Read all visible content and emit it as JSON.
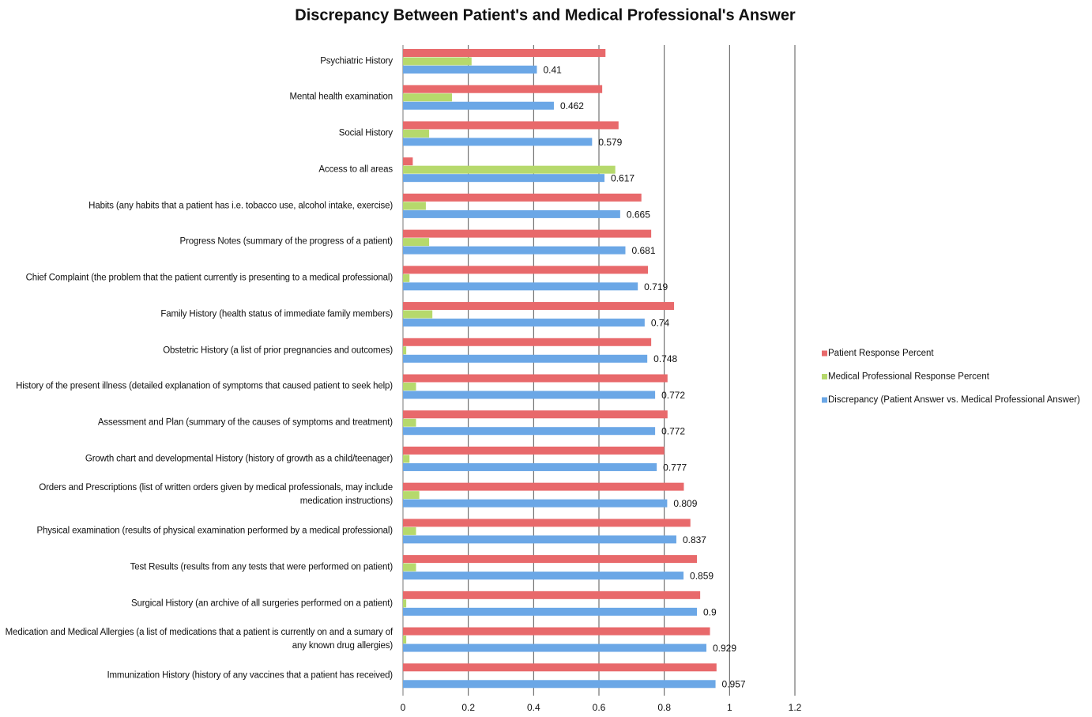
{
  "chart_data": {
    "type": "bar",
    "orientation": "horizontal",
    "title": "Discrepancy Between Patient's and Medical Professional's Answer",
    "categories": [
      "Psychiatric History",
      "Mental health examination",
      "Social History",
      "Access to all areas",
      "Habits (any habits that a patient has i.e. tobacco use, alcohol intake, exercise)",
      "Progress Notes (summary of the progress of a patient)",
      "Chief Complaint (the problem that the patient currently is presenting to a medical professional)",
      "Family History (health status of immediate family members)",
      "Obstetric History (a list of prior pregnancies and outcomes)",
      "History of the present illness (detailed explanation of symptoms that caused patient to seek help)",
      "Assessment and Plan (summary of the causes of symptoms and treatment)",
      "Growth chart and developmental History (history of growth as a child/teenager)",
      "Orders and Prescriptions (list of written orders given by medical professionals, may include medication instructions)",
      "Physical examination (results of physical examination performed by a medical professional)",
      "Test Results (results from any tests that were performed on patient)",
      "Surgical History (an archive of all surgeries performed on a patient)",
      "Medication and Medical Allergies (a list of medications that a patient is currently on and a sumary of any known drug allergies)",
      "Immunization History (history of any vaccines that a patient has received)"
    ],
    "series": [
      {
        "name": "Patient Response Percent",
        "color": "#e8696b",
        "values": [
          0.62,
          0.61,
          0.66,
          0.03,
          0.73,
          0.76,
          0.75,
          0.83,
          0.76,
          0.81,
          0.81,
          0.8,
          0.86,
          0.88,
          0.9,
          0.91,
          0.94,
          0.96
        ]
      },
      {
        "name": "Medical Professional Response Percent",
        "color": "#b6d96c",
        "values": [
          0.21,
          0.15,
          0.08,
          0.65,
          0.07,
          0.08,
          0.02,
          0.09,
          0.01,
          0.04,
          0.04,
          0.02,
          0.05,
          0.04,
          0.04,
          0.01,
          0.01,
          0
        ]
      },
      {
        "name": "Discrepancy (Patient Answer vs. Medical Professional Answer)",
        "color": "#6ba7e6",
        "values": [
          0.41,
          0.462,
          0.579,
          0.617,
          0.665,
          0.681,
          0.719,
          0.74,
          0.748,
          0.772,
          0.772,
          0.777,
          0.809,
          0.837,
          0.859,
          0.9,
          0.929,
          0.957
        ],
        "data_labels": true
      }
    ],
    "xlim": [
      0,
      1.2
    ],
    "xticks": [
      0,
      0.2,
      0.4,
      0.6,
      0.8,
      1,
      1.2
    ],
    "grid": true,
    "legend": "right"
  }
}
